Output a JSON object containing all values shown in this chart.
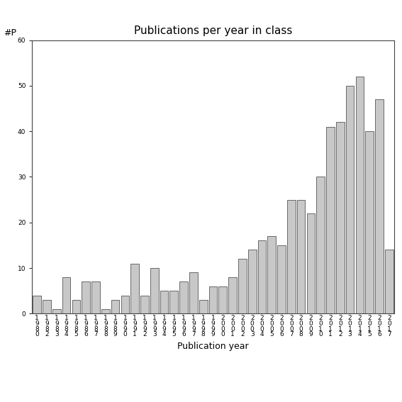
{
  "title": "Publications per year in class",
  "xlabel": "Publication year",
  "ylabel": "#P",
  "ylim": [
    0,
    60
  ],
  "yticks": [
    0,
    10,
    20,
    30,
    40,
    50,
    60
  ],
  "bar_color": "#c8c8c8",
  "bar_edgecolor": "#555555",
  "categories": [
    "1\n9\n8\n0",
    "1\n9\n8\n2",
    "1\n9\n8\n3",
    "1\n9\n8\n4",
    "1\n9\n8\n5",
    "1\n9\n8\n6",
    "1\n9\n8\n7",
    "1\n9\n8\n8",
    "1\n9\n8\n9",
    "1\n9\n9\n0",
    "1\n9\n9\n1",
    "1\n9\n9\n2",
    "1\n9\n9\n3",
    "1\n9\n9\n4",
    "1\n9\n9\n5",
    "1\n9\n9\n6",
    "1\n9\n9\n7",
    "1\n9\n9\n8",
    "1\n9\n9\n9",
    "2\n0\n0\n0",
    "2\n0\n0\n1",
    "2\n0\n0\n2",
    "2\n0\n0\n3",
    "2\n0\n0\n4",
    "2\n0\n0\n5",
    "2\n0\n0\n6",
    "2\n0\n0\n7",
    "2\n0\n0\n8",
    "2\n0\n0\n9",
    "2\n0\n1\n0",
    "2\n0\n1\n1",
    "2\n0\n1\n2",
    "2\n0\n1\n3",
    "2\n0\n1\n4",
    "2\n0\n1\n5",
    "2\n0\n1\n6",
    "2\n0\n1\n7"
  ],
  "values": [
    4,
    3,
    1,
    8,
    3,
    7,
    7,
    1,
    3,
    4,
    11,
    4,
    10,
    5,
    5,
    7,
    9,
    3,
    6,
    6,
    8,
    12,
    14,
    16,
    17,
    15,
    25,
    25,
    22,
    30,
    41,
    42,
    50,
    52,
    40,
    47,
    14
  ],
  "background_color": "#ffffff",
  "title_fontsize": 11,
  "label_fontsize": 9,
  "tick_fontsize": 6.5
}
